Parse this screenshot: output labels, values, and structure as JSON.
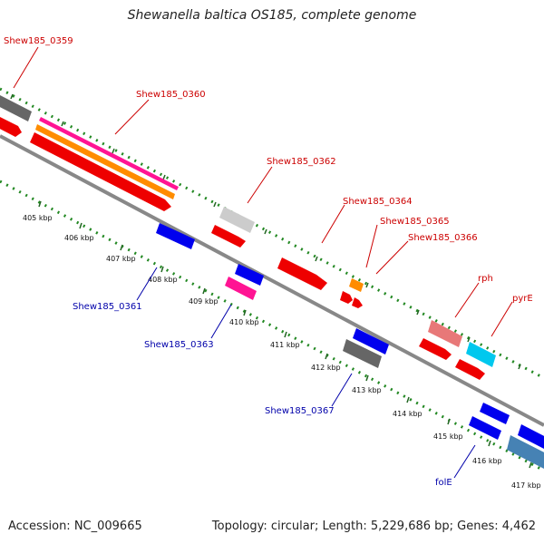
{
  "title": "Shewanella baltica OS185, complete genome",
  "footer": {
    "accession": "Accession: NC_009665",
    "summary": "Topology: circular; Length: 5,229,686 bp; Genes: 4,462"
  },
  "colors": {
    "backbone": "#888888",
    "tick_guides": "#228822",
    "label_forward": "#cc0000",
    "label_reverse": "#0000aa"
  },
  "scale_ticks": [
    {
      "kbp": 405,
      "label": "405 kbp"
    },
    {
      "kbp": 406,
      "label": "406 kbp"
    },
    {
      "kbp": 407,
      "label": "407 kbp"
    },
    {
      "kbp": 408,
      "label": "408 kbp"
    },
    {
      "kbp": 409,
      "label": "409 kbp"
    },
    {
      "kbp": 410,
      "label": "410 kbp"
    },
    {
      "kbp": 411,
      "label": "411 kbp"
    },
    {
      "kbp": 412,
      "label": "412 kbp"
    },
    {
      "kbp": 413,
      "label": "413 kbp"
    },
    {
      "kbp": 414,
      "label": "414 kbp"
    },
    {
      "kbp": 415,
      "label": "415 kbp"
    },
    {
      "kbp": 416,
      "label": "416 kbp"
    },
    {
      "kbp": 417,
      "label": "417 kbp"
    }
  ],
  "gene_labels": [
    {
      "name": "Shew185_0359",
      "strand": "forward"
    },
    {
      "name": "Shew185_0360",
      "strand": "forward"
    },
    {
      "name": "Shew185_0362",
      "strand": "forward"
    },
    {
      "name": "Shew185_0364",
      "strand": "forward"
    },
    {
      "name": "Shew185_0365",
      "strand": "forward"
    },
    {
      "name": "Shew185_0366",
      "strand": "forward"
    },
    {
      "name": "rph",
      "strand": "forward"
    },
    {
      "name": "pyrE",
      "strand": "forward"
    },
    {
      "name": "Shew185_0361",
      "strand": "reverse"
    },
    {
      "name": "Shew185_0363",
      "strand": "reverse"
    },
    {
      "name": "Shew185_0367",
      "strand": "reverse"
    },
    {
      "name": "folE",
      "strand": "reverse"
    }
  ]
}
